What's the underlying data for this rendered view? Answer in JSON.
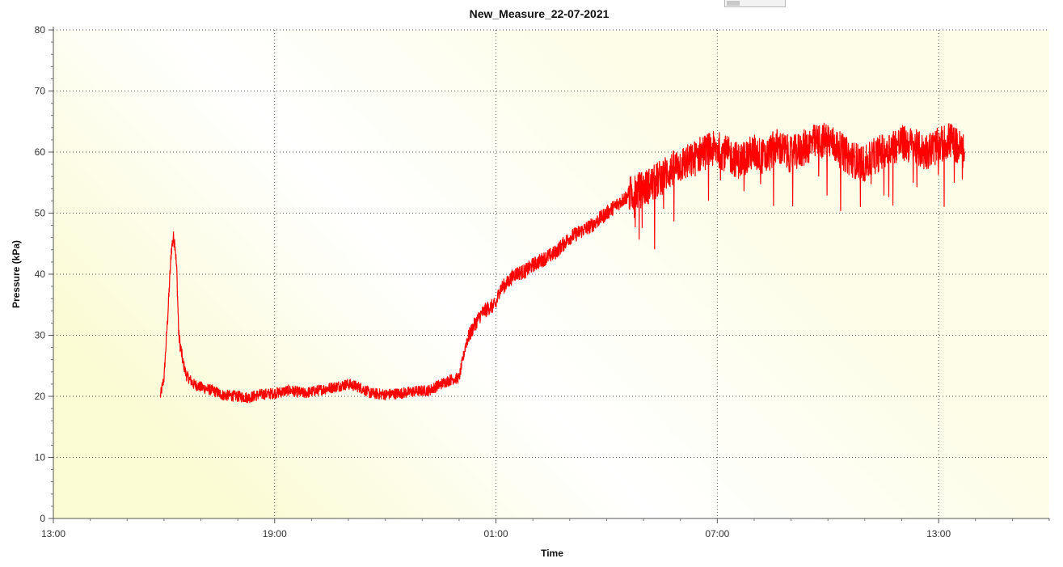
{
  "chart_data": {
    "type": "line",
    "title": "New_Measure_22-07-2021",
    "xlabel": "Time",
    "ylabel": "Pressure (kPa)",
    "x_unit": "hours (clock time, starting 13:00 on day 1)",
    "xlim": [
      13,
      40
    ],
    "ylim": [
      0,
      80
    ],
    "x_ticks": [
      {
        "value": 13,
        "label": "13:00"
      },
      {
        "value": 19,
        "label": "19:00"
      },
      {
        "value": 25,
        "label": "01:00"
      },
      {
        "value": 31,
        "label": "07:00"
      },
      {
        "value": 37,
        "label": "13:00"
      }
    ],
    "y_ticks": [
      0,
      10,
      20,
      30,
      40,
      50,
      60,
      70,
      80
    ],
    "grid": true,
    "legend": "none",
    "series": [
      {
        "color": "#ff0000",
        "x": [
          15.9,
          16.0,
          16.1,
          16.2,
          16.25,
          16.3,
          16.35,
          16.4,
          16.5,
          16.6,
          16.8,
          17.0,
          17.3,
          17.6,
          18.0,
          18.3,
          18.6,
          19.0,
          19.4,
          19.8,
          20.2,
          20.6,
          21.0,
          21.3,
          21.6,
          22.0,
          22.4,
          22.8,
          23.2,
          23.5,
          23.8,
          24.0,
          24.1,
          24.2,
          24.4,
          24.6,
          24.8,
          25.0,
          25.1,
          25.3,
          25.5,
          25.8,
          26.0,
          26.3,
          26.6,
          27.0,
          27.3,
          27.6,
          28.0,
          28.3,
          28.6,
          29.0,
          29.3,
          29.6,
          30.0,
          30.3,
          30.6,
          31.0,
          31.3,
          31.6,
          32.0,
          32.3,
          32.6,
          33.0,
          33.3,
          33.6,
          34.0,
          34.3,
          34.6,
          35.0,
          35.3,
          35.6,
          36.0,
          36.3,
          36.6,
          37.0,
          37.3,
          37.7
        ],
        "y": [
          20.0,
          23.0,
          33.0,
          44.0,
          46.0,
          45.0,
          40.0,
          30.0,
          26.0,
          23.5,
          22.0,
          21.5,
          21.0,
          20.2,
          20.0,
          19.8,
          20.3,
          20.5,
          21.0,
          20.5,
          21.0,
          21.5,
          22.0,
          21.5,
          20.5,
          20.3,
          20.5,
          20.8,
          21.0,
          22.0,
          22.8,
          23.0,
          26.0,
          29.0,
          31.5,
          33.5,
          34.5,
          35.0,
          37.5,
          38.5,
          40.0,
          40.5,
          41.5,
          42.5,
          43.5,
          46.0,
          47.0,
          48.0,
          50.0,
          51.5,
          53.0,
          54.0,
          55.0,
          56.5,
          58.0,
          58.5,
          60.0,
          60.5,
          59.5,
          58.5,
          60.0,
          59.0,
          61.0,
          59.5,
          60.5,
          61.5,
          62.0,
          60.5,
          59.0,
          58.0,
          59.5,
          60.5,
          61.5,
          61.0,
          60.0,
          61.0,
          62.0,
          60.0
        ]
      }
    ]
  }
}
